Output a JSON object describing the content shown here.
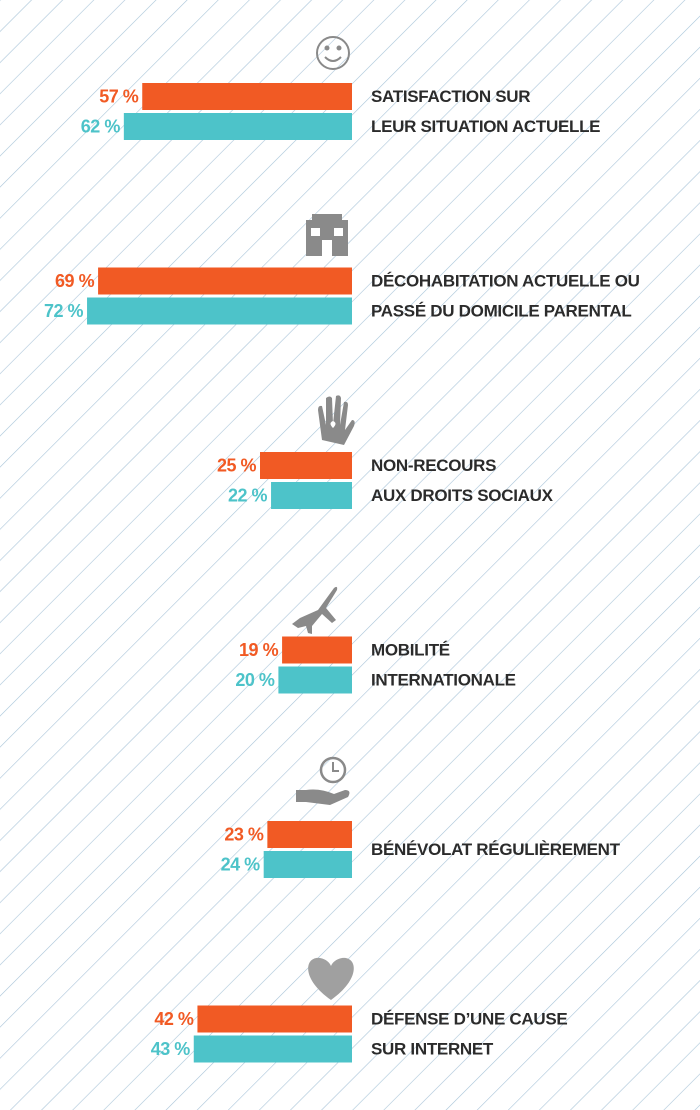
{
  "chart_data": {
    "type": "bar",
    "orientation": "horizontal",
    "categories": [
      [
        "SATISFACTION SUR",
        "LEUR SITUATION ACTUELLE"
      ],
      [
        "DÉCOHABITATION ACTUELLE OU",
        "PASSÉ DU DOMICILE PARENTAL"
      ],
      [
        "NON-RECOURS",
        "AUX DROITS SOCIAUX"
      ],
      [
        "MOBILITÉ",
        "INTERNATIONALE"
      ],
      [
        "BÉNÉVOLAT RÉGULIÈREMENT"
      ],
      [
        "DÉFENSE D’UNE CAUSE",
        "SUR INTERNET"
      ]
    ],
    "series": [
      {
        "color": "#f15a24",
        "values": [
          57,
          69,
          25,
          19,
          23,
          42
        ],
        "value_labels": [
          "57 %",
          "69 %",
          "25 %",
          "19 %",
          "23 %",
          "42 %"
        ]
      },
      {
        "color": "#4dc3c9",
        "values": [
          62,
          72,
          22,
          20,
          24,
          43
        ],
        "value_labels": [
          "62 %",
          "72 %",
          "22 %",
          "20 %",
          "24 %",
          "43 %"
        ]
      }
    ]
  }
}
